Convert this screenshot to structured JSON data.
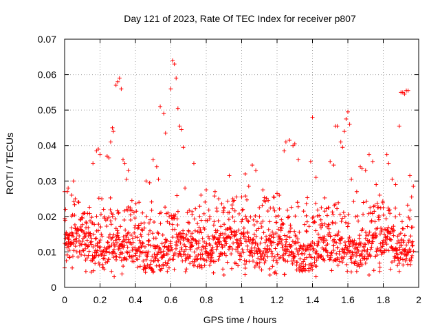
{
  "chart_data": {
    "type": "scatter",
    "title": "Day 121 of 2023, Rate Of TEC Index for receiver p807",
    "xlabel": "GPS time / hours",
    "ylabel": "ROTI / TECUs",
    "xlim": [
      0,
      2
    ],
    "ylim": [
      0,
      0.07
    ],
    "xticks": [
      0,
      0.2,
      0.4,
      0.6,
      0.8,
      1,
      1.2,
      1.4,
      1.6,
      1.8,
      2
    ],
    "yticks": [
      0,
      0.01,
      0.02,
      0.03,
      0.04,
      0.05,
      0.06,
      0.07
    ],
    "xtick_labels": [
      "0",
      "0.2",
      "0.4",
      "0.6",
      "0.8",
      "1",
      "1.2",
      "1.4",
      "1.6",
      "1.8",
      "2"
    ],
    "ytick_labels": [
      "0",
      "0.01",
      "0.02",
      "0.03",
      "0.04",
      "0.05",
      "0.06",
      "0.07"
    ],
    "grid": true,
    "marker": "+",
    "color": "#ff0000",
    "series": [
      {
        "name": "ROTI",
        "points": [
          [
            0.0,
            0.027
          ],
          [
            0.0,
            0.0055
          ],
          [
            0.005,
            0.022
          ],
          [
            0.01,
            0.0075
          ],
          [
            0.015,
            0.027
          ],
          [
            0.02,
            0.028
          ],
          [
            0.03,
            0.0085
          ],
          [
            0.04,
            0.026
          ],
          [
            0.05,
            0.03
          ],
          [
            0.06,
            0.025
          ],
          [
            0.08,
            0.024
          ],
          [
            0.09,
            0.019
          ],
          [
            0.1,
            0.013
          ],
          [
            0.12,
            0.012
          ],
          [
            0.13,
            0.0115
          ],
          [
            0.15,
            0.0043
          ],
          [
            0.16,
            0.035
          ],
          [
            0.18,
            0.0385
          ],
          [
            0.19,
            0.039
          ],
          [
            0.2,
            0.0375
          ],
          [
            0.21,
            0.025
          ],
          [
            0.22,
            0.022
          ],
          [
            0.24,
            0.037
          ],
          [
            0.25,
            0.0365
          ],
          [
            0.26,
            0.041
          ],
          [
            0.265,
            0.0045
          ],
          [
            0.27,
            0.045
          ],
          [
            0.275,
            0.044
          ],
          [
            0.29,
            0.057
          ],
          [
            0.3,
            0.058
          ],
          [
            0.31,
            0.059
          ],
          [
            0.32,
            0.056
          ],
          [
            0.33,
            0.036
          ],
          [
            0.34,
            0.035
          ],
          [
            0.35,
            0.0305
          ],
          [
            0.36,
            0.033
          ],
          [
            0.38,
            0.0245
          ],
          [
            0.4,
            0.009
          ],
          [
            0.42,
            0.024
          ],
          [
            0.44,
            0.021
          ],
          [
            0.46,
            0.03
          ],
          [
            0.48,
            0.0295
          ],
          [
            0.5,
            0.036
          ],
          [
            0.52,
            0.034
          ],
          [
            0.53,
            0.0305
          ],
          [
            0.54,
            0.051
          ],
          [
            0.56,
            0.049
          ],
          [
            0.57,
            0.0435
          ],
          [
            0.58,
            0.0185
          ],
          [
            0.59,
            0.0055
          ],
          [
            0.6,
            0.056
          ],
          [
            0.61,
            0.064
          ],
          [
            0.62,
            0.063
          ],
          [
            0.63,
            0.059
          ],
          [
            0.64,
            0.0505
          ],
          [
            0.65,
            0.0455
          ],
          [
            0.66,
            0.0445
          ],
          [
            0.67,
            0.0395
          ],
          [
            0.68,
            0.028
          ],
          [
            0.7,
            0.016
          ],
          [
            0.72,
            0.0205
          ],
          [
            0.73,
            0.035
          ],
          [
            0.75,
            0.018
          ],
          [
            0.77,
            0.026
          ],
          [
            0.8,
            0.0275
          ],
          [
            0.82,
            0.02
          ],
          [
            0.85,
            0.027
          ],
          [
            0.87,
            0.025
          ],
          [
            0.9,
            0.0225
          ],
          [
            0.93,
            0.0315
          ],
          [
            0.95,
            0.025
          ],
          [
            0.97,
            0.0255
          ],
          [
            1.0,
            0.0255
          ],
          [
            1.02,
            0.032
          ],
          [
            1.04,
            0.0285
          ],
          [
            1.06,
            0.0345
          ],
          [
            1.08,
            0.033
          ],
          [
            1.1,
            0.0225
          ],
          [
            1.12,
            0.0275
          ],
          [
            1.15,
            0.0245
          ],
          [
            1.18,
            0.0255
          ],
          [
            1.2,
            0.0265
          ],
          [
            1.24,
            0.0385
          ],
          [
            1.25,
            0.041
          ],
          [
            1.27,
            0.0415
          ],
          [
            1.29,
            0.04
          ],
          [
            1.3,
            0.0405
          ],
          [
            1.32,
            0.036
          ],
          [
            1.35,
            0.0215
          ],
          [
            1.37,
            0.0185
          ],
          [
            1.39,
            0.0355
          ],
          [
            1.4,
            0.048
          ],
          [
            1.42,
            0.031
          ],
          [
            1.45,
            0.0225
          ],
          [
            1.47,
            0.0215
          ],
          [
            1.5,
            0.0355
          ],
          [
            1.52,
            0.0345
          ],
          [
            1.53,
            0.0455
          ],
          [
            1.54,
            0.0455
          ],
          [
            1.56,
            0.041
          ],
          [
            1.57,
            0.0395
          ],
          [
            1.58,
            0.044
          ],
          [
            1.59,
            0.0475
          ],
          [
            1.6,
            0.0495
          ],
          [
            1.61,
            0.046
          ],
          [
            1.62,
            0.0305
          ],
          [
            1.65,
            0.027
          ],
          [
            1.67,
            0.034
          ],
          [
            1.68,
            0.0335
          ],
          [
            1.7,
            0.033
          ],
          [
            1.72,
            0.0375
          ],
          [
            1.74,
            0.0355
          ],
          [
            1.76,
            0.029
          ],
          [
            1.78,
            0.026
          ],
          [
            1.8,
            0.0225
          ],
          [
            1.82,
            0.0375
          ],
          [
            1.83,
            0.035
          ],
          [
            1.85,
            0.0305
          ],
          [
            1.87,
            0.029
          ],
          [
            1.89,
            0.0455
          ],
          [
            1.9,
            0.055
          ],
          [
            1.91,
            0.055
          ],
          [
            1.92,
            0.0545
          ],
          [
            1.93,
            0.0555
          ],
          [
            1.94,
            0.0555
          ],
          [
            1.95,
            0.0315
          ],
          [
            1.96,
            0.0255
          ],
          [
            1.97,
            0.0285
          ],
          [
            0.12,
            0.0045
          ],
          [
            0.28,
            0.003
          ],
          [
            0.58,
            0.0045
          ],
          [
            0.9,
            0.0035
          ],
          [
            1.16,
            0.0035
          ],
          [
            1.42,
            0.003
          ],
          [
            1.65,
            0.0045
          ],
          [
            1.72,
            0.0035
          ],
          [
            1.78,
            0.0045
          ],
          [
            1.89,
            0.0045
          ]
        ]
      }
    ],
    "dense_band": {
      "x_range": [
        0,
        1.97
      ],
      "y_range": [
        0.0035,
        0.026
      ],
      "center": 0.0105,
      "note": "dense cloud of ROTI samples, mostly between 0.005 and 0.02"
    }
  }
}
